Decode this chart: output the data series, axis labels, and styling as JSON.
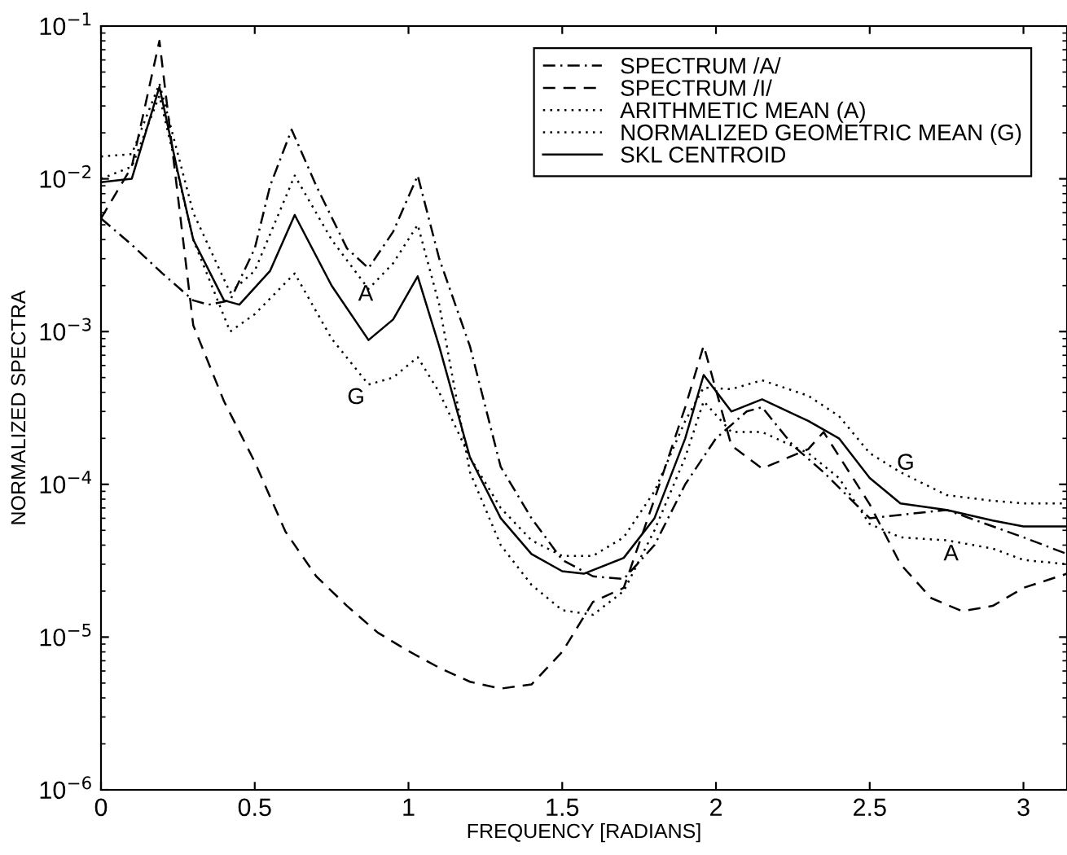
{
  "chart_data": {
    "type": "line",
    "xlabel": "FREQUENCY [RADIANS]",
    "ylabel": "NORMALIZED SPECTRA",
    "log": "y",
    "xlim": [
      0,
      3.1416
    ],
    "xticks": [
      0,
      0.5,
      1,
      1.5,
      2,
      2.5,
      3
    ],
    "ylim": [
      1e-06,
      0.1
    ],
    "yticks": [
      {
        "value": 1e-06,
        "label": "10$^{−6}$"
      },
      {
        "value": 1e-05,
        "label": "10$^{−5}$"
      },
      {
        "value": 0.0001,
        "label": "10$^{−4}$"
      },
      {
        "value": 0.001,
        "label": "10$^{−3}$"
      },
      {
        "value": 0.01,
        "label": "10$^{−2}$"
      },
      {
        "value": 0.1,
        "label": "10$^{−1}$"
      }
    ],
    "grid": false,
    "legend": "top right",
    "marker": "none",
    "series": [
      {
        "name": "SPECTRUM /A/",
        "color": "#000000",
        "line_style": "dashdot",
        "x": [
          0,
          0.1,
          0.2,
          0.3,
          0.35,
          0.42,
          0.5,
          0.55,
          0.62,
          0.7,
          0.8,
          0.87,
          0.95,
          1.03,
          1.1,
          1.2,
          1.3,
          1.4,
          1.5,
          1.6,
          1.7,
          1.8,
          1.9,
          2.0,
          2.1,
          2.15,
          2.25,
          2.35,
          2.5,
          2.75,
          3.0,
          3.1416
        ],
        "values": [
          0.0055,
          0.0037,
          0.0024,
          0.0016,
          0.0015,
          0.0016,
          0.0035,
          0.009,
          0.021,
          0.009,
          0.0035,
          0.0026,
          0.0045,
          0.0105,
          0.003,
          0.0008,
          0.00013,
          6e-05,
          3.2e-05,
          2.5e-05,
          2.4e-05,
          4e-05,
          0.0001,
          0.0002,
          0.0003,
          0.00032,
          0.00018,
          0.00012,
          6e-05,
          6.8e-05,
          4.5e-05,
          3.5e-05
        ]
      },
      {
        "name": "SPECTRUM /I/",
        "color": "#000000",
        "line_style": "dashed",
        "x": [
          0,
          0.1,
          0.19,
          0.3,
          0.4,
          0.5,
          0.6,
          0.7,
          0.8,
          0.9,
          1.0,
          1.1,
          1.2,
          1.3,
          1.4,
          1.5,
          1.6,
          1.7,
          1.8,
          1.9,
          1.96,
          2.05,
          2.15,
          2.3,
          2.35,
          2.5,
          2.6,
          2.7,
          2.8,
          2.9,
          3.0,
          3.1416
        ],
        "values": [
          0.0055,
          0.012,
          0.08,
          0.0011,
          0.00035,
          0.00014,
          4.9e-05,
          2.5e-05,
          1.6e-05,
          1.07e-05,
          8.1e-06,
          6.3e-06,
          5.1e-06,
          4.6e-06,
          4.9e-06,
          8e-06,
          1.7e-05,
          2.1e-05,
          8e-05,
          0.00032,
          0.00081,
          0.00018,
          0.000127,
          0.00017,
          0.00022,
          7.4e-05,
          3e-05,
          1.8e-05,
          1.48e-05,
          1.6e-05,
          2.1e-05,
          2.6e-05
        ]
      },
      {
        "name": "ARITHMETIC MEAN (A)",
        "color": "#000000",
        "line_style": "dotted",
        "x": [
          0,
          0.1,
          0.19,
          0.3,
          0.42,
          0.5,
          0.63,
          0.75,
          0.87,
          0.95,
          1.03,
          1.1,
          1.2,
          1.3,
          1.4,
          1.5,
          1.6,
          1.7,
          1.8,
          1.9,
          1.96,
          2.05,
          2.15,
          2.3,
          2.4,
          2.5,
          2.6,
          2.75,
          2.9,
          3.0,
          3.1416
        ],
        "values": [
          0.014,
          0.0145,
          0.042,
          0.006,
          0.0018,
          0.0025,
          0.0105,
          0.004,
          0.0019,
          0.0028,
          0.005,
          0.0015,
          0.00012,
          4e-05,
          2.2e-05,
          1.5e-05,
          1.4e-05,
          2e-05,
          5e-05,
          0.00015,
          0.00035,
          0.00022,
          0.00022,
          0.00016,
          0.00011,
          5.5e-05,
          4.5e-05,
          4.3e-05,
          3.8e-05,
          3.2e-05,
          3e-05
        ]
      },
      {
        "name": "NORMALIZED GEOMETRIC MEAN (G)",
        "color": "#000000",
        "line_style": "dotted",
        "x": [
          0,
          0.1,
          0.19,
          0.3,
          0.42,
          0.5,
          0.63,
          0.75,
          0.87,
          0.95,
          1.03,
          1.1,
          1.2,
          1.3,
          1.4,
          1.5,
          1.6,
          1.7,
          1.8,
          1.9,
          1.96,
          2.05,
          2.15,
          2.3,
          2.4,
          2.5,
          2.6,
          2.75,
          2.9,
          3.0,
          3.1416
        ],
        "values": [
          0.01,
          0.012,
          0.035,
          0.004,
          0.001,
          0.0013,
          0.0024,
          0.0009,
          0.00045,
          0.0005,
          0.00068,
          0.0004,
          0.00015,
          7e-05,
          4.3e-05,
          3.4e-05,
          3.4e-05,
          4.5e-05,
          9e-05,
          0.00026,
          0.00043,
          0.00042,
          0.00048,
          0.00038,
          0.00028,
          0.00016,
          0.00012,
          8.5e-05,
          7.8e-05,
          7.5e-05,
          7.5e-05
        ]
      },
      {
        "name": "SKL CENTROID",
        "color": "#000000",
        "line_style": "solid",
        "x": [
          0,
          0.1,
          0.19,
          0.25,
          0.3,
          0.4,
          0.45,
          0.55,
          0.63,
          0.75,
          0.87,
          0.95,
          1.03,
          1.1,
          1.2,
          1.3,
          1.4,
          1.5,
          1.57,
          1.7,
          1.8,
          1.9,
          1.96,
          2.05,
          2.15,
          2.3,
          2.4,
          2.5,
          2.6,
          2.75,
          2.9,
          3.0,
          3.1416
        ],
        "values": [
          0.0095,
          0.01,
          0.04,
          0.011,
          0.004,
          0.0016,
          0.0015,
          0.0025,
          0.0058,
          0.002,
          0.00088,
          0.0012,
          0.0023,
          0.0008,
          0.00015,
          6e-05,
          3.5e-05,
          2.7e-05,
          2.6e-05,
          3.3e-05,
          6e-05,
          0.0002,
          0.00052,
          0.0003,
          0.00036,
          0.00026,
          0.0002,
          0.00011,
          7.5e-05,
          6.8e-05,
          5.8e-05,
          5.3e-05,
          5.3e-05
        ]
      }
    ],
    "annotations": [
      "A",
      "G",
      "G",
      "A"
    ]
  }
}
